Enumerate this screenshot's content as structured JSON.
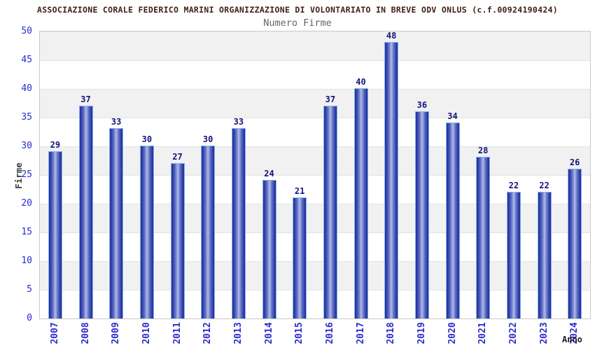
{
  "header": {
    "title": "ASSOCIAZIONE CORALE FEDERICO MARINI ORGANIZZAZIONE DI VOLONTARIATO IN BREVE ODV ONLUS (c.f.00924190424)",
    "subtitle": "Numero Firme"
  },
  "chart_data": {
    "type": "bar",
    "title": "Numero Firme",
    "xlabel": "Anno",
    "ylabel": "Firme",
    "categories": [
      "2007",
      "2008",
      "2009",
      "2010",
      "2011",
      "2012",
      "2013",
      "2014",
      "2015",
      "2016",
      "2017",
      "2018",
      "2019",
      "2020",
      "2021",
      "2022",
      "2023",
      "2024"
    ],
    "values": [
      29,
      37,
      33,
      30,
      27,
      30,
      33,
      24,
      21,
      37,
      40,
      48,
      36,
      34,
      28,
      22,
      22,
      26
    ],
    "ylim": [
      0,
      50
    ],
    "ytick_step": 5,
    "grid": "horizontal-bands-alternating",
    "legend": "none",
    "bar_value_labels": true,
    "x_tick_rotation_deg": -90,
    "colors": {
      "bar_dark": "#232f9b",
      "bar_light": "#b2bdea",
      "bar_border": "#82b6ec",
      "tick_blue": "#2b2bd0",
      "value_navy": "#14147d",
      "band_gray": "#f1f1f1",
      "band_white": "#ffffff",
      "plot_border": "#c9c9c9",
      "grid_line": "#e3e3e3",
      "title_color": "#401f14",
      "subtitle_color": "#646464",
      "axis_label_color": "#3c3c3c"
    }
  }
}
